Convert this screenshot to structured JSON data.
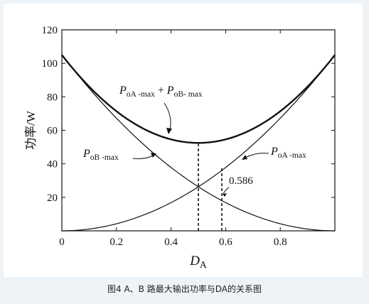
{
  "chart_data": {
    "type": "line",
    "title": "",
    "xlabel": {
      "main": "D",
      "sub": "A"
    },
    "ylabel": "功率/W",
    "xlim": [
      0,
      1
    ],
    "ylim": [
      0,
      120
    ],
    "xticks": [
      0,
      0.2,
      0.4,
      0.6,
      0.8
    ],
    "xtick_labels": [
      "0",
      "0.2",
      "0.4",
      "0.6",
      "0.8"
    ],
    "yticks": [
      0,
      20,
      40,
      60,
      80,
      100,
      120
    ],
    "ytick_labels": [
      "",
      "20",
      "40",
      "60",
      "80",
      "100",
      "120"
    ],
    "grid": false,
    "series": [
      {
        "name": "P_oA-max",
        "x": [
          0,
          0.1,
          0.2,
          0.3,
          0.4,
          0.5,
          0.6,
          0.7,
          0.8,
          0.9,
          1.0
        ],
        "y": [
          0,
          1.1,
          4.2,
          9.5,
          16.8,
          26.3,
          37.8,
          51.5,
          67.2,
          85.1,
          105
        ]
      },
      {
        "name": "P_oB-max",
        "x": [
          0,
          0.1,
          0.2,
          0.3,
          0.4,
          0.5,
          0.6,
          0.7,
          0.8,
          0.9,
          1.0
        ],
        "y": [
          105,
          85.1,
          67.2,
          51.5,
          37.8,
          26.3,
          16.8,
          9.5,
          4.2,
          1.1,
          0
        ]
      },
      {
        "name": "P_oA-max + P_oB-max",
        "x": [
          0,
          0.1,
          0.2,
          0.3,
          0.4,
          0.5,
          0.6,
          0.7,
          0.8,
          0.9,
          1.0
        ],
        "y": [
          105,
          86.2,
          71.4,
          61.0,
          54.6,
          52.5,
          54.6,
          61.0,
          71.4,
          86.2,
          105
        ]
      }
    ],
    "markers": [
      {
        "x": 0.5,
        "y_from": 0,
        "y_to": 52.5,
        "style": "dashed"
      },
      {
        "x": 0.586,
        "y_from": 0,
        "y_to": 38,
        "style": "dashed",
        "label": "0.586"
      }
    ],
    "annotations": [
      {
        "main": "P",
        "sub": "oA -max",
        "text2": " +",
        "main2": "P",
        "sub2": "oB- max",
        "target": "P_oA-max + P_oB-max"
      },
      {
        "main": "P",
        "sub": "oB -max",
        "target": "P_oB-max"
      },
      {
        "main": "P",
        "sub": "oA -max",
        "target": "P_oA-max"
      }
    ]
  },
  "caption": "图4 A、B 路最大输出功率与DA的关系图"
}
